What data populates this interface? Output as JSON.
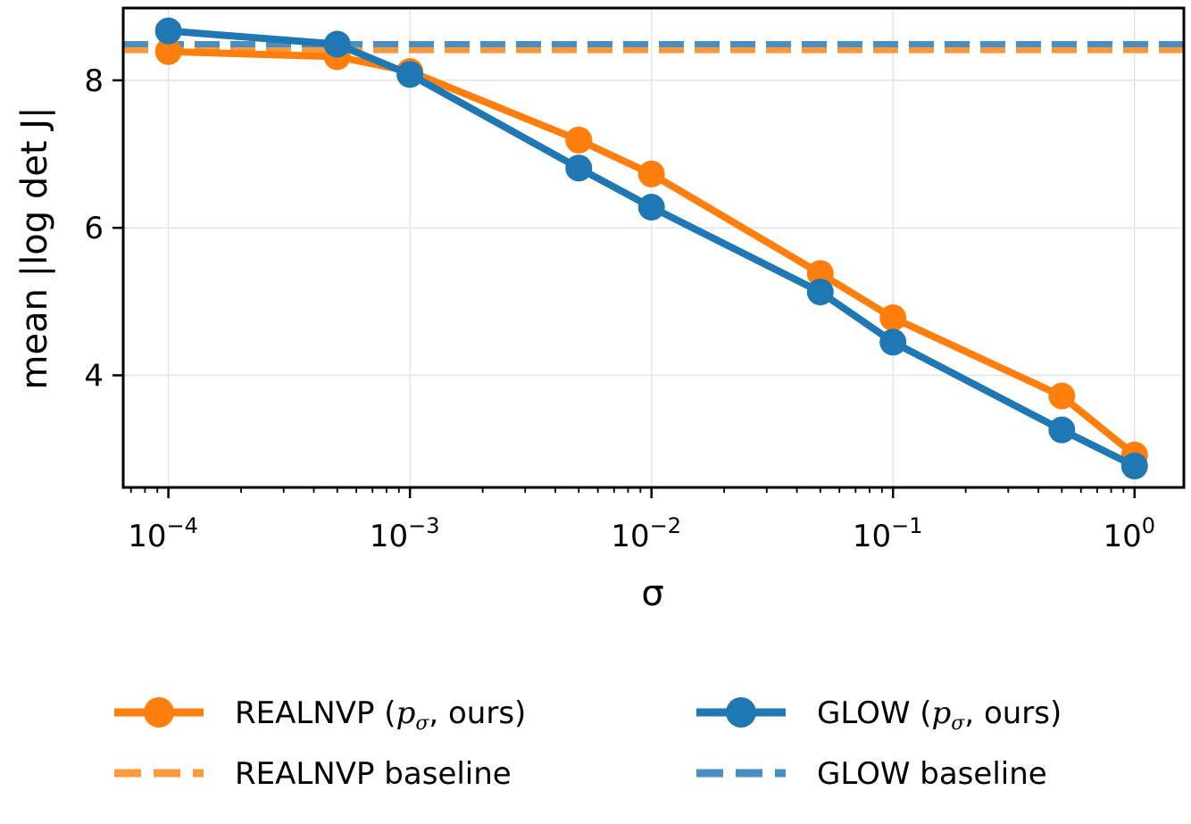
{
  "chart_data": {
    "type": "line",
    "xscale": "log",
    "xlabel": "σ",
    "ylabel": "mean |log det J|",
    "xlim": [
      6.5e-05,
      1.6
    ],
    "ylim": [
      2.48,
      8.98
    ],
    "grid": true,
    "x": [
      0.0001,
      0.0005,
      0.001,
      0.005,
      0.01,
      0.05,
      0.1,
      0.5,
      1.0
    ],
    "xticks": [
      {
        "value": 0.0001,
        "base": "10",
        "exp": "−4"
      },
      {
        "value": 0.001,
        "base": "10",
        "exp": "−3"
      },
      {
        "value": 0.01,
        "base": "10",
        "exp": "−2"
      },
      {
        "value": 0.1,
        "base": "10",
        "exp": "−1"
      },
      {
        "value": 1,
        "base": "10",
        "exp": "0"
      }
    ],
    "yticks": [
      {
        "value": 4,
        "label": "4"
      },
      {
        "value": 6,
        "label": "6"
      },
      {
        "value": 8,
        "label": "8"
      }
    ],
    "series": [
      {
        "key": "realnvp",
        "name_pre": "REALNVP (",
        "name_math": "p",
        "name_sub": "σ",
        "name_post": ", ours)",
        "color": "#ff7f0e",
        "values": [
          8.39,
          8.32,
          8.12,
          7.19,
          6.73,
          5.38,
          4.78,
          3.72,
          2.92
        ]
      },
      {
        "key": "glow",
        "name_pre": "GLOW (",
        "name_math": "p",
        "name_sub": "σ",
        "name_post": ", ours)",
        "color": "#1f77b4",
        "values": [
          8.67,
          8.49,
          8.08,
          6.81,
          6.28,
          5.13,
          4.45,
          3.26,
          2.77
        ]
      }
    ],
    "baselines": [
      {
        "key": "realnvp-baseline",
        "name": "REALNVP baseline",
        "color": "#ff993e",
        "value": 8.41
      },
      {
        "key": "glow-baseline",
        "name": "GLOW baseline",
        "color": "#4a8fc4",
        "value": 8.49
      }
    ],
    "legend_position": "bottom"
  }
}
